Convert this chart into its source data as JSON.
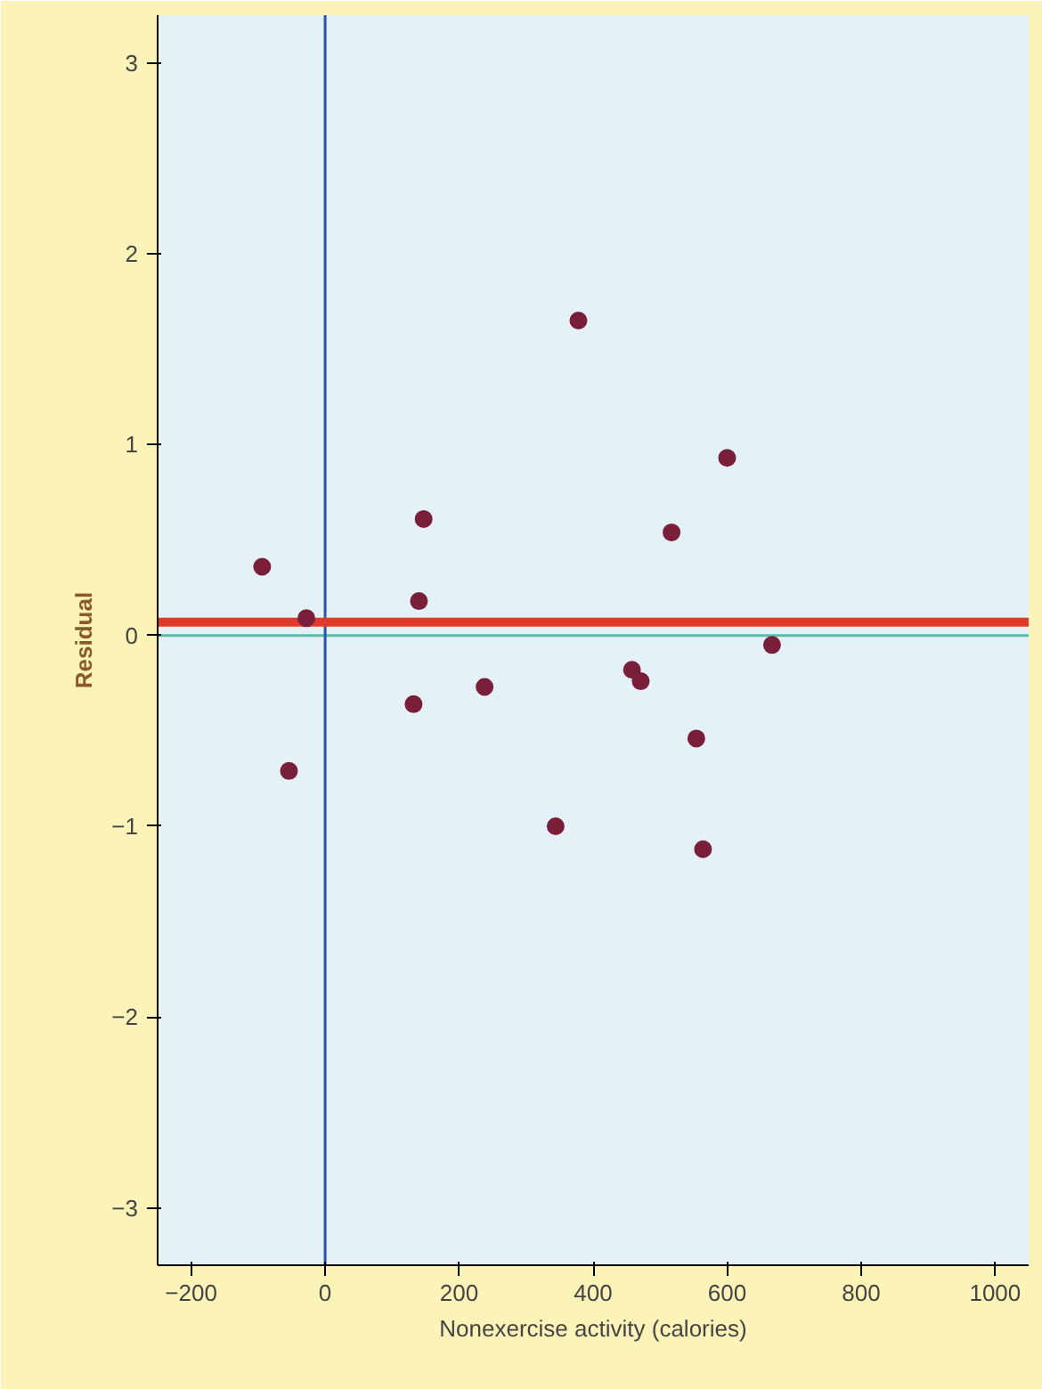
{
  "chart_data": {
    "type": "scatter",
    "xlabel": "Nonexercise activity (calories)",
    "ylabel": "Residual",
    "x": [
      -94,
      -28,
      -54,
      147,
      140,
      132,
      238,
      378,
      344,
      458,
      471,
      517,
      600,
      554,
      564,
      667
    ],
    "series": [
      {
        "color": "#7a1f3a",
        "values": [
          0.36,
          0.09,
          -0.71,
          0.61,
          0.18,
          -0.36,
          -0.27,
          1.65,
          -1.0,
          -0.18,
          -0.24,
          0.54,
          0.93,
          -0.54,
          -1.12,
          -0.05
        ]
      }
    ],
    "xlim": [
      -250,
      1050
    ],
    "ylim": [
      -3.3,
      3.25
    ],
    "xticks": [
      -200,
      0,
      200,
      400,
      600,
      800,
      1000
    ],
    "yticks": [
      -3,
      -2,
      -1,
      0,
      1,
      2,
      3
    ],
    "ref_lines": [
      {
        "axis": "y",
        "value": 0,
        "color": "#5fb8a8"
      },
      {
        "axis": "x",
        "value": 0,
        "color": "#2a52b0"
      },
      {
        "axis": "y",
        "value": 0.07,
        "color": "#e03a2a"
      }
    ],
    "marker": "circle",
    "grid": false
  }
}
